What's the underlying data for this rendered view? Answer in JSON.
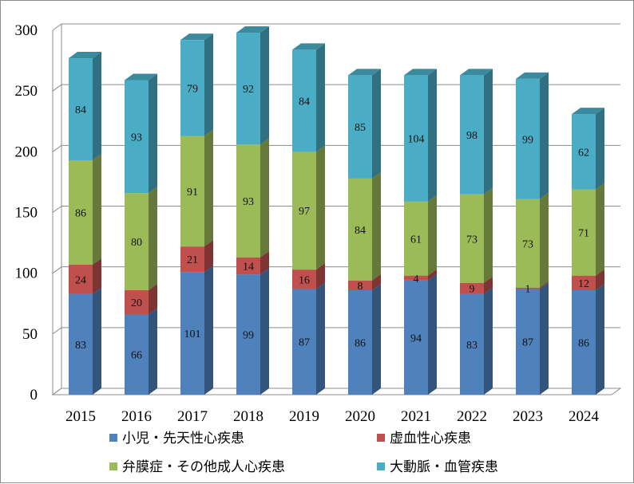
{
  "chart_data": {
    "type": "bar",
    "stacked": true,
    "three_d": true,
    "categories": [
      "2015",
      "2016",
      "2017",
      "2018",
      "2019",
      "2020",
      "2021",
      "2022",
      "2023",
      "2024"
    ],
    "series": [
      {
        "name": "小児・先天性心疾患",
        "color": "#4f81bd",
        "values": [
          83,
          66,
          101,
          99,
          87,
          86,
          94,
          83,
          87,
          86
        ]
      },
      {
        "name": "虚血性心疾患",
        "color": "#c0504d",
        "values": [
          24,
          20,
          21,
          14,
          16,
          8,
          4,
          9,
          1,
          12
        ]
      },
      {
        "name": "弁膜症・その他成人心疾患",
        "color": "#9bbb59",
        "values": [
          86,
          80,
          91,
          93,
          97,
          84,
          61,
          73,
          73,
          71
        ]
      },
      {
        "name": "大動脈・血管疾患",
        "color": "#4bacc6",
        "values": [
          84,
          93,
          79,
          92,
          84,
          85,
          104,
          98,
          99,
          62
        ]
      }
    ],
    "ylim": [
      0,
      300
    ],
    "yticks": [
      0,
      50,
      100,
      150,
      200,
      250,
      300
    ],
    "grid": true,
    "legend_position": "bottom"
  }
}
